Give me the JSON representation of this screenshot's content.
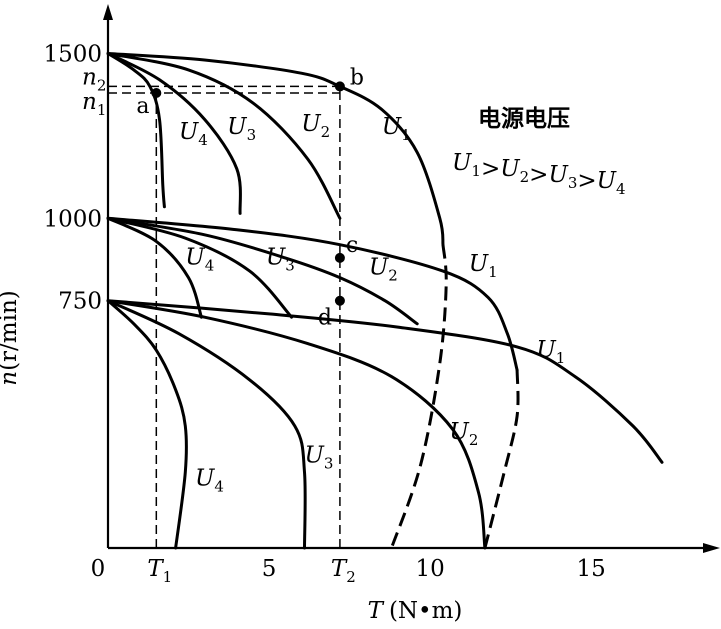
{
  "chart_data": {
    "type": "line",
    "title": "",
    "xlabel": {
      "var": "T",
      "unit": "(N•m)"
    },
    "ylabel": {
      "var": "n",
      "unit": "(r/min)"
    },
    "xlim": [
      0,
      19
    ],
    "ylim": [
      0,
      1650
    ],
    "x_ticks": [
      {
        "value": 0,
        "label": "0"
      },
      {
        "value": 5,
        "label": "5"
      },
      {
        "value": 10,
        "label": "10"
      },
      {
        "value": 15,
        "label": "15"
      }
    ],
    "y_ticks": [
      {
        "value": 750,
        "label": "750"
      },
      {
        "value": 1000,
        "label": "1000"
      },
      {
        "value": 1500,
        "label": "1500"
      }
    ],
    "marked_x": [
      {
        "value": 1.5,
        "label": "T",
        "sub": "1"
      },
      {
        "value": 7.2,
        "label": "T",
        "sub": "2"
      }
    ],
    "marked_y": [
      {
        "value": 1400,
        "label": "n",
        "sub": "2"
      },
      {
        "value": 1380,
        "label": "n",
        "sub": "1"
      }
    ],
    "legend": {
      "title": "电源电压",
      "relation": [
        {
          "text": "U",
          "sub": "1"
        },
        {
          "text": ">"
        },
        {
          "text": "U",
          "sub": "2"
        },
        {
          "text": ">"
        },
        {
          "text": "U",
          "sub": "3"
        },
        {
          "text": ">"
        },
        {
          "text": "U",
          "sub": "4"
        }
      ]
    },
    "groups": [
      {
        "name": "1500",
        "curves": [
          {
            "voltage": "U1",
            "points": [
              [
                0,
                1500
              ],
              [
                3,
                1480
              ],
              [
                6,
                1440
              ],
              [
                7.2,
                1400
              ],
              [
                8.5,
                1330
              ],
              [
                9.6,
                1200
              ],
              [
                10.3,
                1000
              ],
              [
                10.4,
                920
              ]
            ],
            "continuation": [
              [
                10.4,
                920
              ],
              [
                10.5,
                800
              ],
              [
                10.3,
                560
              ],
              [
                9.7,
                250
              ],
              [
                8.8,
                0
              ]
            ]
          },
          {
            "voltage": "U2",
            "points": [
              [
                0,
                1500
              ],
              [
                2.5,
                1450
              ],
              [
                4.5,
                1350
              ],
              [
                6.2,
                1180
              ],
              [
                7.2,
                1000
              ]
            ]
          },
          {
            "voltage": "U3",
            "points": [
              [
                0,
                1500
              ],
              [
                1.6,
                1420
              ],
              [
                3,
                1300
              ],
              [
                4,
                1150
              ],
              [
                4.1,
                1015
              ]
            ]
          },
          {
            "voltage": "U4",
            "points": [
              [
                0,
                1500
              ],
              [
                0.8,
                1450
              ],
              [
                1.3,
                1400
              ],
              [
                1.6,
                1300
              ],
              [
                1.7,
                1100
              ],
              [
                1.75,
                1035
              ]
            ]
          }
        ]
      },
      {
        "name": "1000",
        "curves": [
          {
            "voltage": "U1",
            "points": [
              [
                0,
                1000
              ],
              [
                4,
                965
              ],
              [
                7.2,
                920
              ],
              [
                10.4,
                840
              ],
              [
                11.8,
                760
              ],
              [
                12.4,
                650
              ],
              [
                12.7,
                540
              ]
            ],
            "continuation": [
              [
                12.7,
                540
              ],
              [
                12.7,
                400
              ],
              [
                12.3,
                230
              ],
              [
                11.7,
                0
              ]
            ]
          },
          {
            "voltage": "U2",
            "points": [
              [
                0,
                1000
              ],
              [
                3,
                950
              ],
              [
                5.5,
                880
              ],
              [
                7.2,
                820
              ],
              [
                8.6,
                750
              ],
              [
                9.6,
                680
              ]
            ]
          },
          {
            "voltage": "U3",
            "points": [
              [
                0,
                1000
              ],
              [
                2.4,
                940
              ],
              [
                4.4,
                840
              ],
              [
                5.7,
                700
              ]
            ]
          },
          {
            "voltage": "U4",
            "points": [
              [
                0,
                1000
              ],
              [
                1.5,
                930
              ],
              [
                2.5,
                820
              ],
              [
                2.9,
                700
              ]
            ]
          }
        ]
      },
      {
        "name": "750",
        "curves": [
          {
            "voltage": "U1",
            "points": [
              [
                0,
                750
              ],
              [
                5,
                710
              ],
              [
                9,
                670
              ],
              [
                12.7,
                610
              ],
              [
                14.5,
                520
              ],
              [
                16.3,
                370
              ],
              [
                17.2,
                260
              ]
            ]
          },
          {
            "voltage": "U2",
            "points": [
              [
                0,
                750
              ],
              [
                3,
                700
              ],
              [
                6.2,
                620
              ],
              [
                8.8,
                520
              ],
              [
                10.7,
                360
              ],
              [
                11.5,
                170
              ],
              [
                11.7,
                0
              ]
            ]
          },
          {
            "voltage": "U3",
            "points": [
              [
                0,
                750
              ],
              [
                2.2,
                650
              ],
              [
                4.4,
                510
              ],
              [
                5.8,
                370
              ],
              [
                6.1,
                230
              ],
              [
                6.1,
                0
              ]
            ]
          },
          {
            "voltage": "U4",
            "points": [
              [
                0,
                750
              ],
              [
                0.8,
                680
              ],
              [
                1.5,
                600
              ],
              [
                2.1,
                480
              ],
              [
                2.4,
                370
              ],
              [
                2.4,
                230
              ],
              [
                2.1,
                0
              ]
            ]
          }
        ]
      }
    ],
    "curve_labels": [
      {
        "text": "U",
        "sub": "4",
        "x": 2.2,
        "y": 1240
      },
      {
        "text": "U",
        "sub": "3",
        "x": 3.7,
        "y": 1255
      },
      {
        "text": "U",
        "sub": "2",
        "x": 6.0,
        "y": 1265
      },
      {
        "text": "U",
        "sub": "1",
        "x": 8.5,
        "y": 1255
      },
      {
        "text": "U",
        "sub": "4",
        "x": 2.4,
        "y": 860
      },
      {
        "text": "U",
        "sub": "3",
        "x": 4.9,
        "y": 860
      },
      {
        "text": "U",
        "sub": "2",
        "x": 8.1,
        "y": 830
      },
      {
        "text": "U",
        "sub": "1",
        "x": 11.2,
        "y": 840
      },
      {
        "text": "U",
        "sub": "1",
        "x": 13.3,
        "y": 580
      },
      {
        "text": "U",
        "sub": "2",
        "x": 10.6,
        "y": 330
      },
      {
        "text": "U",
        "sub": "3",
        "x": 6.1,
        "y": 260
      },
      {
        "text": "U",
        "sub": "4",
        "x": 2.7,
        "y": 190
      }
    ],
    "points": [
      {
        "name": "a",
        "x": 1.5,
        "y": 1380
      },
      {
        "name": "b",
        "x": 7.2,
        "y": 1400
      },
      {
        "name": "c",
        "x": 7.2,
        "y": 880
      },
      {
        "name": "d",
        "x": 7.2,
        "y": 750
      }
    ]
  }
}
